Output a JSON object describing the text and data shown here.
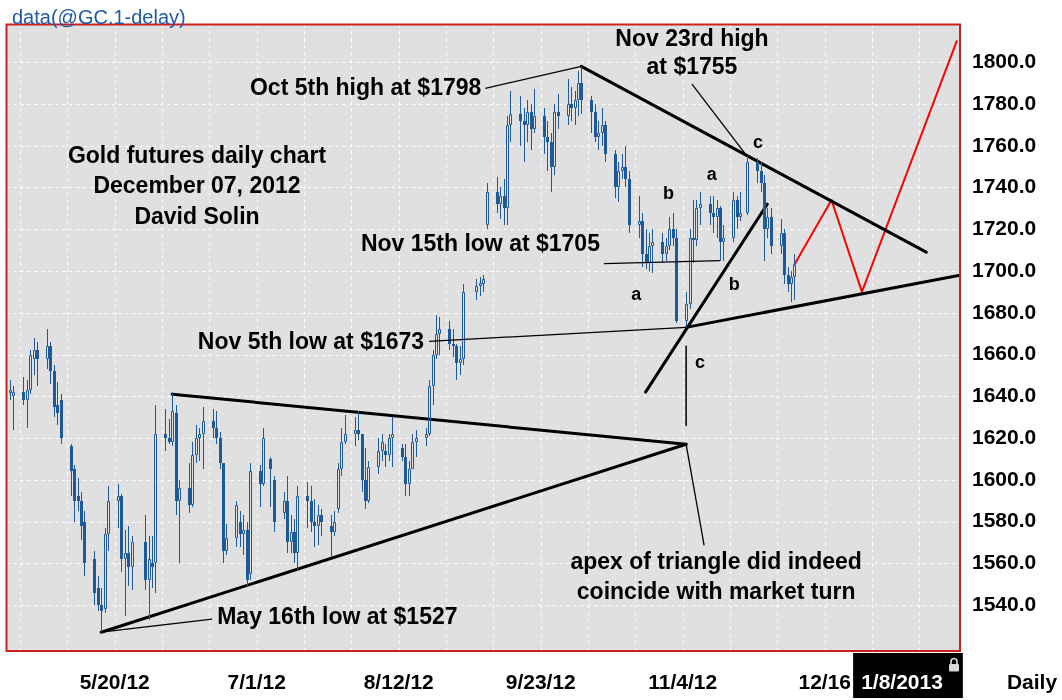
{
  "chart_data": {
    "type": "candlestick",
    "title": "Gold futures daily chart",
    "subtitle": "December 07, 2012",
    "color": "#1e5a9a",
    "x": [
      "2012-04-19",
      "2012-04-20",
      "2012-04-23",
      "2012-04-24",
      "2012-04-25",
      "2012-04-26",
      "2012-04-27",
      "2012-04-30",
      "2012-05-01",
      "2012-05-02",
      "2012-05-03",
      "2012-05-04",
      "2012-05-07",
      "2012-05-08",
      "2012-05-09",
      "2012-05-10",
      "2012-05-11",
      "2012-05-14",
      "2012-05-15",
      "2012-05-16",
      "2012-05-17",
      "2012-05-18",
      "2012-05-21",
      "2012-05-22",
      "2012-05-23",
      "2012-05-24",
      "2012-05-25",
      "2012-05-29",
      "2012-05-30",
      "2012-05-31",
      "2012-06-01",
      "2012-06-04",
      "2012-06-05",
      "2012-06-06",
      "2012-06-07",
      "2012-06-08",
      "2012-06-11",
      "2012-06-12",
      "2012-06-13",
      "2012-06-14",
      "2012-06-15",
      "2012-06-18",
      "2012-06-19",
      "2012-06-20",
      "2012-06-21",
      "2012-06-22",
      "2012-06-25",
      "2012-06-26",
      "2012-06-27",
      "2012-06-28",
      "2012-06-29",
      "2012-07-02",
      "2012-07-03",
      "2012-07-05",
      "2012-07-06",
      "2012-07-09",
      "2012-07-10",
      "2012-07-11",
      "2012-07-12",
      "2012-07-13",
      "2012-07-16",
      "2012-07-17",
      "2012-07-18",
      "2012-07-19",
      "2012-07-20",
      "2012-07-23",
      "2012-07-24",
      "2012-07-25",
      "2012-07-26",
      "2012-07-27",
      "2012-07-30",
      "2012-07-31",
      "2012-08-01",
      "2012-08-02",
      "2012-08-03",
      "2012-08-06",
      "2012-08-07",
      "2012-08-08",
      "2012-08-09",
      "2012-08-10",
      "2012-08-13",
      "2012-08-14",
      "2012-08-15",
      "2012-08-16",
      "2012-08-17",
      "2012-08-20",
      "2012-08-21",
      "2012-08-22",
      "2012-08-23",
      "2012-08-24",
      "2012-08-27",
      "2012-08-28",
      "2012-08-29",
      "2012-08-30",
      "2012-08-31",
      "2012-09-04",
      "2012-09-05",
      "2012-09-06",
      "2012-09-07",
      "2012-09-10",
      "2012-09-11",
      "2012-09-12",
      "2012-09-13",
      "2012-09-14",
      "2012-09-17",
      "2012-09-18",
      "2012-09-19",
      "2012-09-20",
      "2012-09-21",
      "2012-09-24",
      "2012-09-25",
      "2012-09-26",
      "2012-09-27",
      "2012-09-28",
      "2012-10-01",
      "2012-10-02",
      "2012-10-03",
      "2012-10-04",
      "2012-10-05",
      "2012-10-08",
      "2012-10-09",
      "2012-10-10",
      "2012-10-11",
      "2012-10-12",
      "2012-10-15",
      "2012-10-16",
      "2012-10-17",
      "2012-10-18",
      "2012-10-19",
      "2012-10-22",
      "2012-10-23",
      "2012-10-24",
      "2012-10-25",
      "2012-10-26",
      "2012-10-29",
      "2012-10-30",
      "2012-10-31",
      "2012-11-01",
      "2012-11-02",
      "2012-11-05",
      "2012-11-06",
      "2012-11-07",
      "2012-11-08",
      "2012-11-09",
      "2012-11-12",
      "2012-11-13",
      "2012-11-14",
      "2012-11-15",
      "2012-11-16",
      "2012-11-19",
      "2012-11-20",
      "2012-11-21",
      "2012-11-23",
      "2012-11-26",
      "2012-11-27",
      "2012-11-28",
      "2012-11-29",
      "2012-11-30",
      "2012-12-03",
      "2012-12-04",
      "2012-12-05",
      "2012-12-06",
      "2012-12-07"
    ],
    "ohlc": [
      [
        1642,
        1648,
        1638,
        1643
      ],
      [
        1640,
        1645,
        1624,
        1642
      ],
      [
        1642,
        1649,
        1636,
        1638
      ],
      [
        1638,
        1648,
        1625,
        1643
      ],
      [
        1643,
        1662,
        1641,
        1660
      ],
      [
        1658,
        1668,
        1650,
        1662
      ],
      [
        1662,
        1666,
        1645,
        1658
      ],
      [
        1658,
        1672,
        1653,
        1664
      ],
      [
        1664,
        1666,
        1646,
        1652
      ],
      [
        1652,
        1655,
        1630,
        1635
      ],
      [
        1636,
        1647,
        1626,
        1632
      ],
      [
        1638,
        1641,
        1617,
        1620
      ],
      [
        1616,
        1617,
        1592,
        1604
      ],
      [
        1605,
        1607,
        1580,
        1590
      ],
      [
        1592,
        1601,
        1585,
        1590
      ],
      [
        1590,
        1594,
        1571,
        1578
      ],
      [
        1580,
        1585,
        1554,
        1560
      ],
      [
        1562,
        1566,
        1540,
        1546
      ],
      [
        1548,
        1554,
        1537,
        1540
      ],
      [
        1540,
        1548,
        1527,
        1537
      ],
      [
        1538,
        1577,
        1536,
        1574
      ],
      [
        1574,
        1597,
        1566,
        1590
      ],
      [
        1590,
        1598,
        1577,
        1592
      ],
      [
        1592,
        1593,
        1556,
        1562
      ],
      [
        1562,
        1576,
        1535,
        1565
      ],
      [
        1565,
        1578,
        1549,
        1558
      ],
      [
        1558,
        1573,
        1547,
        1570
      ],
      [
        1570,
        1583,
        1547,
        1552
      ],
      [
        1552,
        1573,
        1533,
        1562
      ],
      [
        1560,
        1573,
        1548,
        1558
      ],
      [
        1560,
        1636,
        1546,
        1622
      ],
      [
        1622,
        1634,
        1614,
        1620
      ],
      [
        1620,
        1629,
        1617,
        1618
      ],
      [
        1618,
        1642,
        1616,
        1633
      ],
      [
        1632,
        1636,
        1583,
        1590
      ],
      [
        1590,
        1600,
        1560,
        1596
      ],
      [
        1596,
        1608,
        1584,
        1588
      ],
      [
        1588,
        1618,
        1587,
        1612
      ],
      [
        1612,
        1626,
        1608,
        1620
      ],
      [
        1620,
        1625,
        1609,
        1622
      ],
      [
        1622,
        1635,
        1605,
        1628
      ],
      [
        1628,
        1634,
        1620,
        1625
      ],
      [
        1625,
        1633,
        1617,
        1620
      ],
      [
        1620,
        1623,
        1605,
        1608
      ],
      [
        1608,
        1608,
        1560,
        1566
      ],
      [
        1566,
        1579,
        1564,
        1572
      ],
      [
        1572,
        1590,
        1568,
        1588
      ],
      [
        1580,
        1585,
        1568,
        1574
      ],
      [
        1574,
        1583,
        1564,
        1576
      ],
      [
        1576,
        1580,
        1549,
        1552
      ],
      [
        1555,
        1608,
        1552,
        1604
      ],
      [
        1604,
        1607,
        1587,
        1598
      ],
      [
        1598,
        1625,
        1597,
        1620
      ],
      [
        1610,
        1611,
        1587,
        1605
      ],
      [
        1600,
        1602,
        1575,
        1580
      ],
      [
        1584,
        1594,
        1581,
        1590
      ],
      [
        1590,
        1602,
        1565,
        1570
      ],
      [
        1570,
        1583,
        1565,
        1575
      ],
      [
        1575,
        1581,
        1560,
        1565
      ],
      [
        1565,
        1597,
        1557,
        1592
      ],
      [
        1592,
        1599,
        1577,
        1590
      ],
      [
        1590,
        1597,
        1575,
        1580
      ],
      [
        1580,
        1591,
        1568,
        1578
      ],
      [
        1578,
        1588,
        1569,
        1583
      ],
      [
        1583,
        1586,
        1573,
        1580
      ],
      [
        1578,
        1583,
        1563,
        1575
      ],
      [
        1575,
        1585,
        1573,
        1580
      ],
      [
        1586,
        1608,
        1584,
        1605
      ],
      [
        1605,
        1625,
        1602,
        1618
      ],
      [
        1618,
        1631,
        1617,
        1622
      ],
      [
        1622,
        1630,
        1616,
        1624
      ],
      [
        1624,
        1633,
        1619,
        1622
      ],
      [
        1622,
        1622,
        1594,
        1600
      ],
      [
        1600,
        1615,
        1586,
        1590
      ],
      [
        1590,
        1609,
        1589,
        1606
      ],
      [
        1606,
        1620,
        1603,
        1614
      ],
      [
        1614,
        1622,
        1609,
        1618
      ],
      [
        1614,
        1617,
        1606,
        1612
      ],
      [
        1612,
        1622,
        1609,
        1620
      ],
      [
        1620,
        1630,
        1606,
        1622
      ],
      [
        1615,
        1617,
        1609,
        1611
      ],
      [
        1611,
        1617,
        1592,
        1598
      ],
      [
        1598,
        1609,
        1592,
        1605
      ],
      [
        1605,
        1622,
        1605,
        1618
      ],
      [
        1618,
        1624,
        1611,
        1620
      ],
      [
        1620,
        1625,
        1616,
        1622
      ],
      [
        1622,
        1648,
        1621,
        1645
      ],
      [
        1645,
        1662,
        1636,
        1660
      ],
      [
        1660,
        1679,
        1658,
        1670
      ],
      [
        1670,
        1678,
        1660,
        1672
      ],
      [
        1672,
        1676,
        1662,
        1665
      ],
      [
        1665,
        1672,
        1659,
        1664
      ],
      [
        1664,
        1665,
        1648,
        1656
      ],
      [
        1656,
        1664,
        1650,
        1658
      ],
      [
        1658,
        1694,
        1655,
        1690
      ],
      [
        1690,
        1696,
        1686,
        1693
      ],
      [
        1693,
        1697,
        1688,
        1694
      ],
      [
        1694,
        1698,
        1690,
        1696
      ],
      [
        1722,
        1742,
        1720,
        1738
      ],
      [
        1738,
        1745,
        1728,
        1732
      ],
      [
        1732,
        1740,
        1725,
        1736
      ],
      [
        1736,
        1744,
        1722,
        1730
      ],
      [
        1730,
        1774,
        1722,
        1770
      ],
      [
        1770,
        1786,
        1762,
        1775
      ],
      [
        1775,
        1784,
        1760,
        1772
      ],
      [
        1772,
        1778,
        1752,
        1770
      ],
      [
        1770,
        1782,
        1762,
        1776
      ],
      [
        1776,
        1780,
        1758,
        1768
      ],
      [
        1768,
        1787,
        1766,
        1774
      ],
      [
        1774,
        1778,
        1756,
        1764
      ],
      [
        1764,
        1772,
        1748,
        1762
      ],
      [
        1762,
        1766,
        1738,
        1750
      ],
      [
        1750,
        1780,
        1746,
        1776
      ],
      [
        1776,
        1785,
        1768,
        1774
      ],
      [
        1774,
        1792,
        1770,
        1780
      ],
      [
        1780,
        1788,
        1772,
        1778
      ],
      [
        1778,
        1786,
        1770,
        1782
      ],
      [
        1782,
        1796,
        1774,
        1790
      ],
      [
        1790,
        1798,
        1775,
        1782
      ],
      [
        1782,
        1784,
        1766,
        1776
      ],
      [
        1776,
        1780,
        1762,
        1764
      ],
      [
        1764,
        1772,
        1758,
        1766
      ],
      [
        1766,
        1778,
        1760,
        1770
      ],
      [
        1770,
        1772,
        1752,
        1756
      ],
      [
        1756,
        1758,
        1735,
        1740
      ],
      [
        1740,
        1752,
        1733,
        1748
      ],
      [
        1748,
        1756,
        1744,
        1750
      ],
      [
        1750,
        1760,
        1740,
        1744
      ],
      [
        1744,
        1748,
        1718,
        1722
      ],
      [
        1722,
        1736,
        1716,
        1724
      ],
      [
        1724,
        1728,
        1702,
        1708
      ],
      [
        1708,
        1720,
        1701,
        1704
      ],
      [
        1704,
        1718,
        1700,
        1712
      ],
      [
        1712,
        1720,
        1699,
        1714
      ],
      [
        1714,
        1718,
        1704,
        1708
      ],
      [
        1708,
        1716,
        1705,
        1712
      ],
      [
        1712,
        1726,
        1710,
        1720
      ],
      [
        1720,
        1728,
        1712,
        1716
      ],
      [
        1716,
        1720,
        1675,
        1676
      ],
      [
        1676,
        1690,
        1673,
        1684
      ],
      [
        1684,
        1720,
        1682,
        1716
      ],
      [
        1716,
        1734,
        1704,
        1715
      ],
      [
        1715,
        1734,
        1712,
        1730
      ],
      [
        1730,
        1738,
        1722,
        1732
      ],
      [
        1732,
        1736,
        1722,
        1728
      ],
      [
        1728,
        1736,
        1718,
        1726
      ],
      [
        1726,
        1734,
        1716,
        1730
      ],
      [
        1730,
        1731,
        1705,
        1714
      ],
      [
        1714,
        1722,
        1705,
        1716
      ],
      [
        1716,
        1738,
        1714,
        1734
      ],
      [
        1734,
        1736,
        1720,
        1726
      ],
      [
        1726,
        1738,
        1724,
        1728
      ],
      [
        1728,
        1755,
        1727,
        1752
      ],
      [
        1752,
        1754,
        1742,
        1748
      ],
      [
        1748,
        1752,
        1738,
        1742
      ],
      [
        1742,
        1746,
        1705,
        1720
      ],
      [
        1720,
        1730,
        1716,
        1726
      ],
      [
        1726,
        1730,
        1708,
        1712
      ],
      [
        1712,
        1725,
        1708,
        1718
      ],
      [
        1718,
        1720,
        1694,
        1698
      ],
      [
        1698,
        1702,
        1690,
        1694
      ],
      [
        1694,
        1700,
        1685,
        1697
      ],
      [
        1697,
        1708,
        1686,
        1703
      ]
    ],
    "series": [
      {
        "type": "line",
        "color": "#000000",
        "x": [
          "2012-06-06",
          "2012-11-05"
        ],
        "values": [
          1641,
          1617
        ]
      },
      {
        "type": "line",
        "color": "#000000",
        "x": [
          "2012-05-16",
          "2012-11-05"
        ],
        "values": [
          1527,
          1617
        ]
      },
      {
        "type": "line",
        "color": "#000000",
        "x": [
          "2012-11-05",
          "2012-11-05"
        ],
        "values": [
          1626,
          1664
        ]
      },
      {
        "type": "line",
        "color": "#000000",
        "x": [
          "2012-10-24",
          "2012-11-29"
        ],
        "values": [
          1642,
          1732
        ]
      },
      {
        "type": "line",
        "color": "#000000",
        "x": [
          "2012-10-05",
          "2013-01-15"
        ],
        "values": [
          1798,
          1709
        ]
      },
      {
        "type": "line",
        "color": "#000000",
        "x": [
          "2012-11-05",
          "2013-01-25"
        ],
        "values": [
          1673,
          1698
        ]
      },
      {
        "type": "line",
        "color": "#ff0000",
        "x": [
          "2012-12-07",
          "2012-12-18",
          "2012-12-27",
          "2013-01-24"
        ],
        "values": [
          1703,
          1734,
          1690,
          1810
        ]
      }
    ],
    "xlim": [
      "2012-04-18",
      "2013-01-25"
    ],
    "xticks": [
      {
        "value": "2012-04-22",
        "label": null
      },
      {
        "value": "2012-05-06",
        "label": null
      },
      {
        "value": "2012-05-20",
        "label": "5/20/12"
      },
      {
        "value": "2012-06-03",
        "label": null
      },
      {
        "value": "2012-06-17",
        "label": null
      },
      {
        "value": "2012-07-01",
        "label": "7/1/12"
      },
      {
        "value": "2012-07-15",
        "label": null
      },
      {
        "value": "2012-07-29",
        "label": null
      },
      {
        "value": "2012-08-12",
        "label": "8/12/12"
      },
      {
        "value": "2012-08-26",
        "label": null
      },
      {
        "value": "2012-09-09",
        "label": null
      },
      {
        "value": "2012-09-23",
        "label": "9/23/12"
      },
      {
        "value": "2012-10-07",
        "label": null
      },
      {
        "value": "2012-10-21",
        "label": null
      },
      {
        "value": "2012-11-04",
        "label": "11/4/12"
      },
      {
        "value": "2012-11-18",
        "label": null
      },
      {
        "value": "2012-12-02",
        "label": null
      },
      {
        "value": "2012-12-16",
        "label": "12/16"
      },
      {
        "value": "2012-12-30",
        "label": null
      },
      {
        "value": "2013-01-13",
        "label": null
      }
    ],
    "ylim": [
      1518,
      1818
    ],
    "yticks": [
      {
        "value": 1540,
        "label": "1540.0"
      },
      {
        "value": 1560,
        "label": "1560.0"
      },
      {
        "value": 1580,
        "label": "1580.0"
      },
      {
        "value": 1600,
        "label": "1600.0"
      },
      {
        "value": 1620,
        "label": "1620.0"
      },
      {
        "value": 1640,
        "label": "1640.0"
      },
      {
        "value": 1660,
        "label": "1660.0"
      },
      {
        "value": 1680,
        "label": "1680.0"
      },
      {
        "value": 1700,
        "label": "1700.0"
      },
      {
        "value": 1720,
        "label": "1720.0"
      },
      {
        "value": 1740,
        "label": "1740.0"
      },
      {
        "value": 1760,
        "label": "1760.0"
      },
      {
        "value": 1780,
        "label": "1780.0"
      },
      {
        "value": 1800,
        "label": "1800.0"
      }
    ],
    "grid": true,
    "annotations": [
      "data(@GC.1-delay)",
      "David Solin",
      {
        "text": "Oct 5th high at $1798",
        "x": "2012-10-05",
        "y": 1798
      },
      {
        "text": "Nov 23rd high\nat $1755",
        "x": "2012-11-23",
        "y": 1755
      },
      {
        "text": "Nov 15th low at $1705",
        "x": "2012-11-15",
        "y": 1705
      },
      {
        "text": "Nov 5th low at $1673",
        "x": "2012-11-05",
        "y": 1673
      },
      {
        "text": "May 16th low at $1527",
        "x": "2012-05-16",
        "y": 1527
      },
      {
        "text": "apex of triangle did indeed\ncoincide with market turn",
        "x": "2012-11-05",
        "y": 1617
      },
      {
        "text": "a",
        "x": "2012-10-23",
        "y": 1702
      },
      {
        "text": "b",
        "x": "2012-11-01",
        "y": 1728
      },
      {
        "text": "c",
        "x": "2012-11-05",
        "y": 1673
      },
      {
        "text": "a",
        "x": "2012-11-09",
        "y": 1738
      },
      {
        "text": "b",
        "x": "2012-11-16",
        "y": 1705
      },
      {
        "text": "c",
        "x": "2012-11-23",
        "y": 1755
      },
      "1/8/2013",
      "Daily"
    ]
  }
}
